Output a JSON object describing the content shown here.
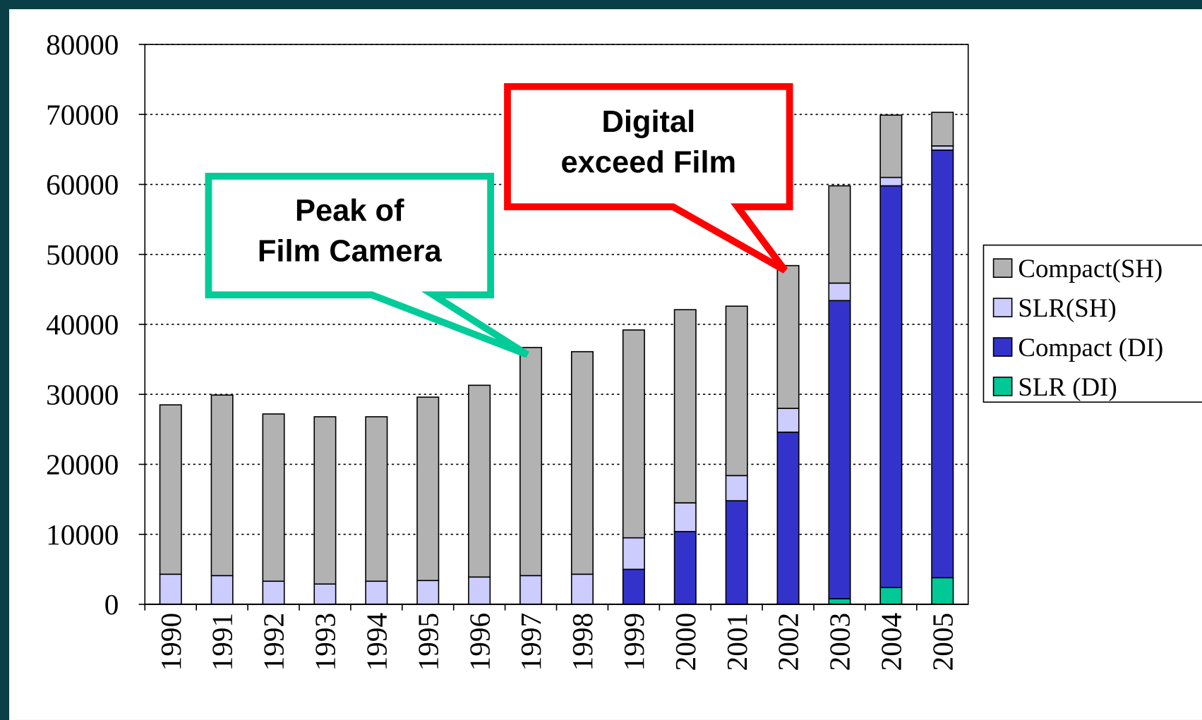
{
  "chart_data": {
    "type": "stacked_bar",
    "categories": [
      "1990",
      "1991",
      "1992",
      "1993",
      "1994",
      "1995",
      "1996",
      "1997",
      "1998",
      "1999",
      "2000",
      "2001",
      "2002",
      "2003",
      "2004",
      "2005"
    ],
    "series": [
      {
        "name": "SLR (DI)",
        "color": "#00c896",
        "values": [
          0,
          0,
          0,
          0,
          0,
          0,
          0,
          0,
          0,
          0,
          0,
          0,
          0,
          800,
          2400,
          3800
        ]
      },
      {
        "name": "Compact (DI)",
        "color": "#3333cc",
        "values": [
          0,
          0,
          0,
          0,
          0,
          0,
          0,
          0,
          0,
          5000,
          10400,
          14800,
          24600,
          42600,
          57400,
          61100
        ]
      },
      {
        "name": "SLR(SH)",
        "color": "#ccccff",
        "values": [
          4300,
          4100,
          3300,
          2900,
          3300,
          3400,
          3900,
          4100,
          4300,
          4500,
          4100,
          3600,
          3400,
          2500,
          1200,
          600
        ]
      },
      {
        "name": "Compact(SH)",
        "color": "#b2b2b2",
        "values": [
          24200,
          25800,
          23900,
          23900,
          23500,
          26200,
          27400,
          32600,
          31800,
          29700,
          27600,
          24200,
          20400,
          13900,
          8900,
          4800
        ]
      }
    ],
    "ylim": [
      0,
      80000
    ],
    "yticks": [
      0,
      10000,
      20000,
      30000,
      40000,
      50000,
      60000,
      70000,
      80000
    ],
    "grid": true,
    "legend": "right",
    "annotations": [
      {
        "lines": [
          "Peak of",
          "Film Camera"
        ],
        "color": "#00cc99"
      },
      {
        "lines": [
          "Digital",
          "exceed Film"
        ],
        "color": "#ff0000"
      }
    ]
  }
}
